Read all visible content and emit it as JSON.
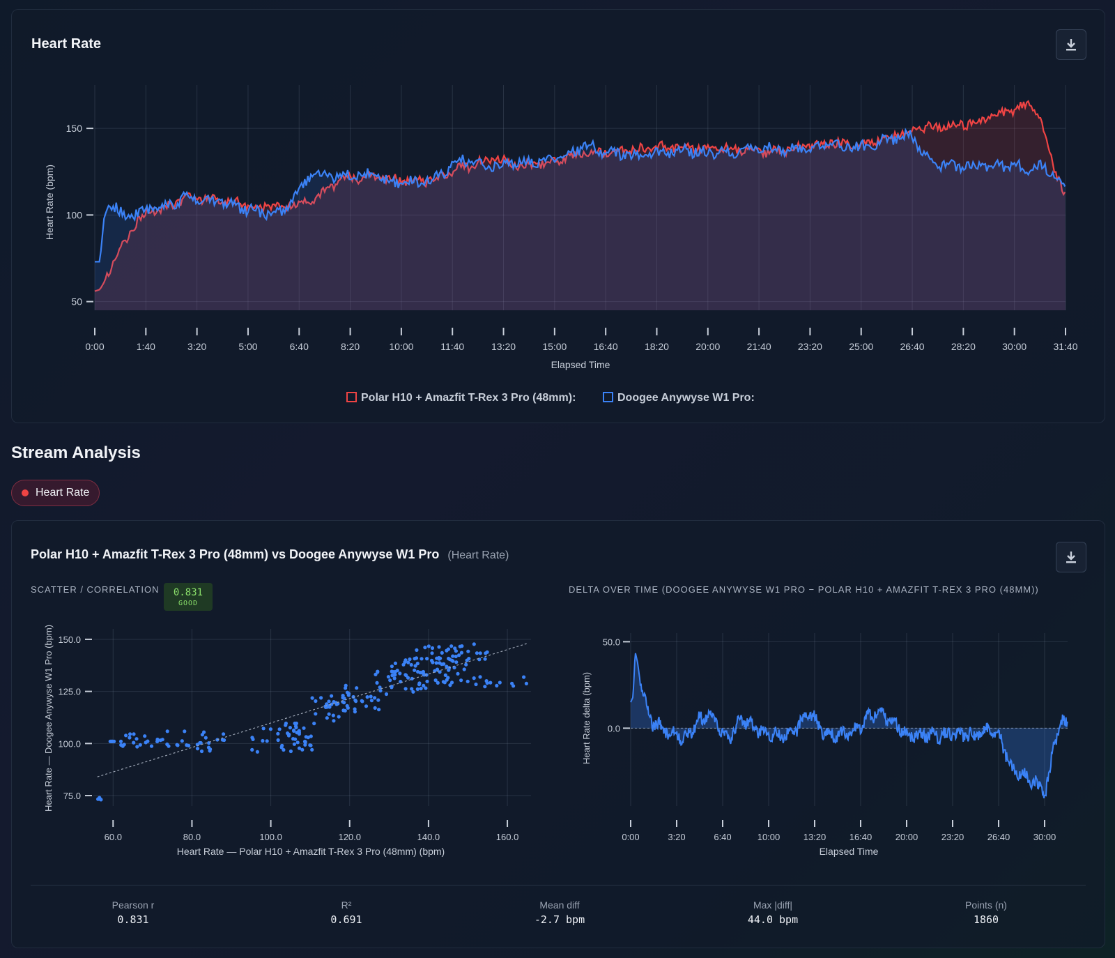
{
  "heart_rate_card": {
    "title": "Heart Rate"
  },
  "stream_analysis": {
    "title": "Stream Analysis",
    "chip_label": "Heart Rate",
    "comparison_title": "Polar H10 + Amazfit T-Rex 3 Pro (48mm) vs Doogee Anywyse W1 Pro",
    "comparison_note": "(Heart Rate)",
    "scatter_label": "SCATTER / CORRELATION",
    "badge_value": "0.831",
    "badge_grade": "GOOD",
    "delta_label": "DELTA OVER TIME (DOOGEE ANYWYSE W1 PRO − POLAR H10 + AMAZFIT T-REX 3 PRO (48MM))",
    "stats": [
      {
        "label": "Pearson r",
        "value": "0.831"
      },
      {
        "label": "R²",
        "value": "0.691"
      },
      {
        "label": "Mean diff",
        "value": "-2.7 bpm"
      },
      {
        "label": "Max |diff|",
        "value": "44.0 bpm"
      },
      {
        "label": "Points (n)",
        "value": "1860"
      }
    ]
  },
  "colors": {
    "polar": "#ef4444",
    "doogee": "#3b82f6",
    "good": "#8be06b"
  },
  "icons": {
    "download": "download-icon"
  },
  "chart_data": [
    {
      "type": "line",
      "title": "",
      "xlabel": "Elapsed Time",
      "ylabel": "Heart Rate (bpm)",
      "x_unit": "seconds",
      "xlim": [
        0,
        1900
      ],
      "ylim": [
        45,
        175
      ],
      "x_ticks": [
        "0:00",
        "1:40",
        "3:20",
        "5:00",
        "6:40",
        "8:20",
        "10:00",
        "11:40",
        "13:20",
        "15:00",
        "16:40",
        "18:20",
        "20:00",
        "21:40",
        "23:20",
        "25:00",
        "26:40",
        "28:20",
        "30:00",
        "31:40"
      ],
      "y_ticks": [
        50,
        100,
        150
      ],
      "legend_position": "bottom",
      "grid": true,
      "series": [
        {
          "name": "Polar H10 + Amazfit T-Rex 3 Pro (48mm):",
          "x": [
            0,
            10,
            20,
            40,
            60,
            80,
            100,
            140,
            180,
            240,
            300,
            360,
            420,
            480,
            540,
            600,
            660,
            720,
            780,
            840,
            900,
            960,
            1020,
            1080,
            1140,
            1200,
            1260,
            1320,
            1380,
            1440,
            1500,
            1560,
            1620,
            1680,
            1710,
            1740,
            1800,
            1830,
            1850,
            1870,
            1890,
            1900
          ],
          "y": [
            56,
            57,
            62,
            77,
            83,
            96,
            101,
            104,
            110,
            109,
            106,
            104,
            108,
            120,
            122,
            120,
            120,
            127,
            133,
            128,
            131,
            136,
            137,
            138,
            140,
            138,
            138,
            136,
            139,
            142,
            140,
            146,
            150,
            152,
            153,
            155,
            161,
            164,
            156,
            135,
            118,
            110
          ]
        },
        {
          "name": "Doogee Anywyse W1 Pro:",
          "x": [
            0,
            10,
            20,
            40,
            60,
            80,
            100,
            140,
            180,
            240,
            300,
            360,
            420,
            480,
            540,
            600,
            660,
            720,
            780,
            840,
            900,
            960,
            1020,
            1080,
            1140,
            1200,
            1260,
            1320,
            1380,
            1440,
            1500,
            1560,
            1600,
            1620,
            1650,
            1700,
            1760,
            1800,
            1830,
            1850,
            1870,
            1890,
            1900
          ],
          "y": [
            73,
            73,
            104,
            104,
            98,
            100,
            103,
            106,
            110,
            108,
            103,
            100,
            122,
            123,
            123,
            118,
            120,
            132,
            128,
            131,
            131,
            140,
            135,
            134,
            138,
            136,
            136,
            138,
            138,
            140,
            139,
            144,
            146,
            137,
            129,
            128,
            129,
            128,
            127,
            129,
            125,
            118,
            112
          ]
        }
      ]
    },
    {
      "type": "scatter",
      "title": "",
      "xlabel": "Heart Rate — Polar H10 + Amazfit T-Rex 3 Pro (48mm) (bpm)",
      "ylabel": "Heart Rate — Doogee Anywyse W1 Pro (bpm)",
      "xlim": [
        55,
        166
      ],
      "ylim": [
        70,
        155
      ],
      "x_ticks": [
        60,
        80,
        100,
        120,
        140,
        160
      ],
      "y_ticks": [
        75,
        100,
        125,
        150
      ],
      "trend_line": {
        "from": [
          56,
          84
        ],
        "to": [
          165,
          148
        ]
      },
      "clusters": [
        {
          "x": [
            56,
            57
          ],
          "y": [
            73,
            74
          ]
        },
        {
          "x": [
            58,
            62
          ],
          "y": [
            101,
            101
          ]
        },
        {
          "x": [
            62,
            90
          ],
          "y": [
            98,
            106
          ]
        },
        {
          "x": [
            78,
            85
          ],
          "y": [
            96,
            102
          ]
        },
        {
          "x": [
            95,
            110
          ],
          "y": [
            96,
            108
          ]
        },
        {
          "x": [
            103,
            112
          ],
          "y": [
            97,
            110
          ]
        },
        {
          "x": [
            110,
            122
          ],
          "y": [
            110,
            122
          ]
        },
        {
          "x": [
            115,
            128
          ],
          "y": [
            115,
            128
          ]
        },
        {
          "x": [
            125,
            140
          ],
          "y": [
            122,
            136
          ]
        },
        {
          "x": [
            130,
            150
          ],
          "y": [
            130,
            142
          ]
        },
        {
          "x": [
            134,
            148
          ],
          "y": [
            135,
            147
          ]
        },
        {
          "x": [
            148,
            155
          ],
          "y": [
            140,
            150
          ]
        },
        {
          "x": [
            140,
            150
          ],
          "y": [
            128,
            130
          ]
        },
        {
          "x": [
            150,
            166
          ],
          "y": [
            127,
            132
          ]
        }
      ]
    },
    {
      "type": "area",
      "title": "",
      "xlabel": "Elapsed Time",
      "ylabel": "Heart Rate delta (bpm)",
      "x_unit": "seconds",
      "xlim": [
        0,
        1900
      ],
      "ylim": [
        -45,
        55
      ],
      "x_ticks": [
        "0:00",
        "3:20",
        "6:40",
        "10:00",
        "13:20",
        "16:40",
        "20:00",
        "23:20",
        "26:40",
        "30:00"
      ],
      "y_ticks": [
        0,
        50
      ],
      "y_tick_labels": [
        "0.0",
        "50.0"
      ],
      "series": [
        {
          "name": "",
          "x": [
            0,
            10,
            20,
            30,
            40,
            60,
            80,
            100,
            140,
            180,
            240,
            300,
            360,
            400,
            440,
            480,
            540,
            600,
            660,
            720,
            780,
            840,
            900,
            960,
            1020,
            1080,
            1140,
            1200,
            1260,
            1320,
            1380,
            1440,
            1500,
            1560,
            1600,
            1610,
            1630,
            1650,
            1680,
            1720,
            1760,
            1790,
            1800,
            1820,
            1840,
            1860,
            1880,
            1900
          ],
          "y": [
            15,
            18,
            44,
            38,
            28,
            20,
            5,
            3,
            0,
            -3,
            -6,
            5,
            8,
            -4,
            -4,
            5,
            0,
            -4,
            -4,
            0,
            10,
            -4,
            -4,
            -4,
            5,
            10,
            4,
            -4,
            -4,
            -4,
            -4,
            -4,
            -4,
            0,
            -4,
            -6,
            -14,
            -22,
            -26,
            -28,
            -32,
            -36,
            -38,
            -28,
            -10,
            0,
            4,
            2
          ]
        }
      ]
    }
  ]
}
